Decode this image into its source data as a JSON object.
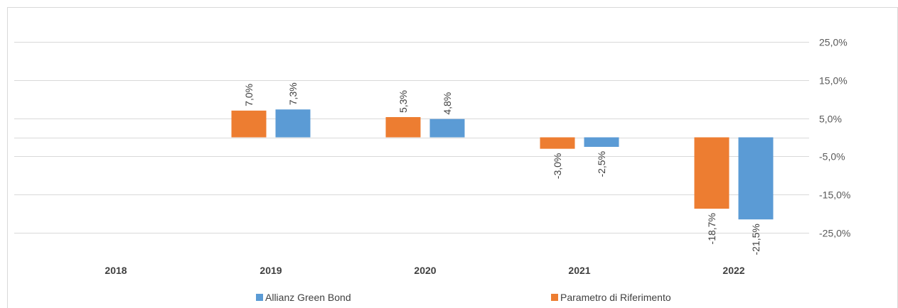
{
  "chart_data": {
    "type": "bar",
    "categories": [
      "2018",
      "2019",
      "2020",
      "2021",
      "2022"
    ],
    "series": [
      {
        "name": "Parametro di Riferimento",
        "color": "#ED7D31",
        "values": [
          null,
          7.0,
          5.3,
          -3.0,
          -18.7
        ],
        "labels": [
          "",
          "7,0%",
          "5,3%",
          "-3,0%",
          "-18,7%"
        ]
      },
      {
        "name": "Allianz Green Bond",
        "color": "#5B9BD5",
        "values": [
          null,
          7.3,
          4.8,
          -2.5,
          -21.5
        ],
        "labels": [
          "",
          "7,3%",
          "4,8%",
          "-2,5%",
          "-21,5%"
        ]
      }
    ],
    "y_ticks": [
      25,
      15,
      5,
      -5,
      -15,
      -25
    ],
    "y_tick_labels": [
      "25,0%",
      "15,0%",
      "5,0%",
      "-5,0%",
      "-15,0%",
      "-25,0%"
    ],
    "ylim": [
      -25,
      25
    ],
    "y_axis_position": "right",
    "grid": true,
    "legend": {
      "placement": "bottom",
      "order": [
        "Allianz Green Bond",
        "Parametro di Riferimento"
      ]
    },
    "title": "",
    "xlabel": "",
    "ylabel": ""
  }
}
